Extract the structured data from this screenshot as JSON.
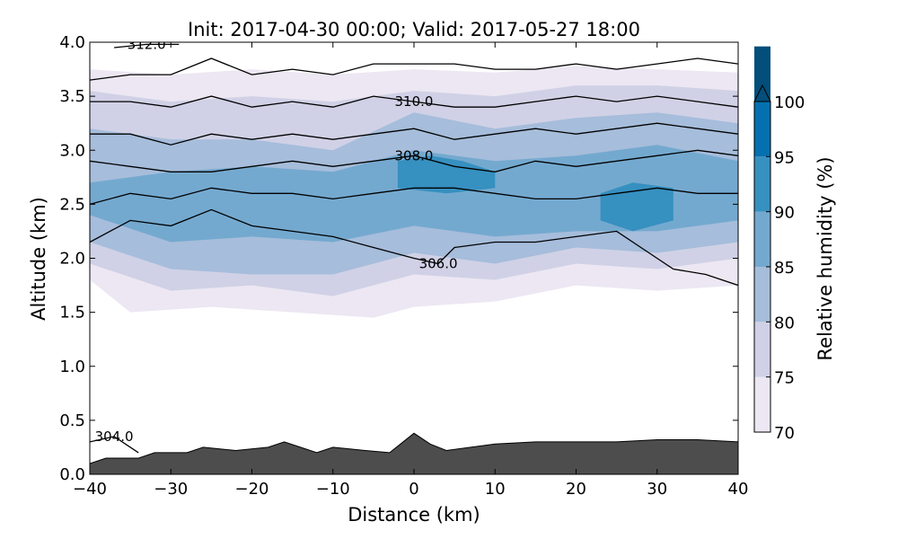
{
  "chart_data": {
    "type": "filled-contour",
    "title": "Init: 2017-04-30 00:00; Valid: 2017-05-27 18:00",
    "xlabel": "Distance (km)",
    "ylabel": "Altitude (km)",
    "xlim": [
      -40,
      40
    ],
    "ylim": [
      0,
      4
    ],
    "x_ticks": [
      -40,
      -30,
      -20,
      -10,
      0,
      10,
      20,
      30,
      40
    ],
    "x_tick_labels": [
      "−40",
      "−30",
      "−20",
      "−10",
      "0",
      "10",
      "20",
      "30",
      "40"
    ],
    "y_ticks": [
      0,
      0.5,
      1,
      1.5,
      2,
      2.5,
      3,
      3.5,
      4
    ],
    "y_tick_labels": [
      "0.0",
      "0.5",
      "1.0",
      "1.5",
      "2.0",
      "2.5",
      "3.0",
      "3.5",
      "4.0"
    ],
    "colorbar": {
      "label": "Relative humidity (%)",
      "levels": [
        70,
        75,
        80,
        85,
        90,
        95,
        100
      ],
      "tick_labels": [
        "70",
        "75",
        "80",
        "85",
        "90",
        "95",
        "100"
      ],
      "colors": [
        "#ece7f2",
        "#d0d1e6",
        "#a6bddb",
        "#74a9cf",
        "#3690c0",
        "#0570b0",
        "#034e7b"
      ],
      "extend": "max"
    },
    "rh_bands": [
      {
        "min": 70,
        "bottom": [
          [
            -40,
            1.8
          ],
          [
            -35,
            1.5
          ],
          [
            -25,
            1.55
          ],
          [
            -15,
            1.5
          ],
          [
            -5,
            1.45
          ],
          [
            0,
            1.55
          ],
          [
            10,
            1.6
          ],
          [
            20,
            1.75
          ],
          [
            30,
            1.7
          ],
          [
            40,
            1.75
          ]
        ],
        "top": [
          [
            -40,
            3.75
          ],
          [
            -30,
            3.7
          ],
          [
            -20,
            3.75
          ],
          [
            -10,
            3.7
          ],
          [
            0,
            3.75
          ],
          [
            10,
            3.72
          ],
          [
            20,
            3.78
          ],
          [
            30,
            3.75
          ],
          [
            40,
            3.72
          ]
        ]
      },
      {
        "min": 75,
        "bottom": [
          [
            -40,
            1.95
          ],
          [
            -30,
            1.7
          ],
          [
            -20,
            1.75
          ],
          [
            -10,
            1.65
          ],
          [
            0,
            1.85
          ],
          [
            10,
            1.8
          ],
          [
            20,
            1.95
          ],
          [
            30,
            1.9
          ],
          [
            40,
            2.0
          ]
        ],
        "top": [
          [
            -40,
            3.55
          ],
          [
            -30,
            3.45
          ],
          [
            -20,
            3.5
          ],
          [
            -10,
            3.45
          ],
          [
            0,
            3.55
          ],
          [
            10,
            3.5
          ],
          [
            20,
            3.6
          ],
          [
            30,
            3.6
          ],
          [
            40,
            3.55
          ]
        ]
      },
      {
        "min": 80,
        "bottom": [
          [
            -40,
            2.15
          ],
          [
            -30,
            1.9
          ],
          [
            -20,
            1.85
          ],
          [
            -10,
            1.85
          ],
          [
            0,
            2.05
          ],
          [
            10,
            1.95
          ],
          [
            20,
            2.1
          ],
          [
            30,
            2.05
          ],
          [
            40,
            2.15
          ]
        ],
        "top": [
          [
            -40,
            3.2
          ],
          [
            -30,
            3.1
          ],
          [
            -20,
            3.1
          ],
          [
            -10,
            3.0
          ],
          [
            0,
            3.35
          ],
          [
            10,
            3.2
          ],
          [
            20,
            3.3
          ],
          [
            30,
            3.35
          ],
          [
            40,
            3.25
          ]
        ]
      },
      {
        "min": 85,
        "bottom": [
          [
            -40,
            2.4
          ],
          [
            -30,
            2.15
          ],
          [
            -20,
            2.2
          ],
          [
            -10,
            2.15
          ],
          [
            0,
            2.3
          ],
          [
            10,
            2.2
          ],
          [
            20,
            2.25
          ],
          [
            30,
            2.25
          ],
          [
            40,
            2.35
          ]
        ],
        "top": [
          [
            -40,
            2.7
          ],
          [
            -30,
            2.8
          ],
          [
            -20,
            2.85
          ],
          [
            -10,
            2.8
          ],
          [
            0,
            3.0
          ],
          [
            10,
            2.9
          ],
          [
            20,
            2.95
          ],
          [
            30,
            3.05
          ],
          [
            40,
            2.9
          ]
        ]
      },
      {
        "min": 90,
        "bottom": [
          [
            -2,
            2.65
          ],
          [
            4,
            2.6
          ],
          [
            10,
            2.65
          ]
        ],
        "top": [
          [
            -2,
            2.9
          ],
          [
            2,
            2.95
          ],
          [
            6,
            2.9
          ],
          [
            10,
            2.8
          ]
        ]
      },
      {
        "min": 90,
        "bottom": [
          [
            23,
            2.35
          ],
          [
            27,
            2.25
          ],
          [
            32,
            2.35
          ]
        ],
        "top": [
          [
            23,
            2.6
          ],
          [
            27,
            2.7
          ],
          [
            32,
            2.65
          ]
        ]
      }
    ],
    "isentropes": [
      {
        "value": 304.0,
        "label": "304.0",
        "points": [
          [
            -40,
            0.3
          ],
          [
            -37,
            0.35
          ],
          [
            -34,
            0.2
          ]
        ]
      },
      {
        "value": 306.0,
        "label": "306.0",
        "points": [
          [
            -40,
            2.15
          ],
          [
            -35,
            2.35
          ],
          [
            -30,
            2.3
          ],
          [
            -25,
            2.45
          ],
          [
            -20,
            2.3
          ],
          [
            -15,
            2.25
          ],
          [
            -10,
            2.2
          ],
          [
            -5,
            2.1
          ],
          [
            0,
            2.0
          ],
          [
            3,
            1.95
          ],
          [
            5,
            2.1
          ],
          [
            10,
            2.15
          ],
          [
            15,
            2.15
          ],
          [
            20,
            2.2
          ],
          [
            25,
            2.25
          ],
          [
            28,
            2.1
          ],
          [
            32,
            1.9
          ],
          [
            36,
            1.85
          ],
          [
            40,
            1.75
          ]
        ]
      },
      {
        "value": 307.0,
        "label": "",
        "points": [
          [
            -40,
            2.5
          ],
          [
            -35,
            2.6
          ],
          [
            -30,
            2.55
          ],
          [
            -25,
            2.65
          ],
          [
            -20,
            2.6
          ],
          [
            -15,
            2.6
          ],
          [
            -10,
            2.55
          ],
          [
            -5,
            2.6
          ],
          [
            0,
            2.65
          ],
          [
            5,
            2.65
          ],
          [
            10,
            2.6
          ],
          [
            15,
            2.55
          ],
          [
            20,
            2.55
          ],
          [
            25,
            2.6
          ],
          [
            30,
            2.65
          ],
          [
            35,
            2.6
          ],
          [
            40,
            2.6
          ]
        ]
      },
      {
        "value": 308.0,
        "label": "308.0",
        "points": [
          [
            -40,
            2.9
          ],
          [
            -35,
            2.85
          ],
          [
            -30,
            2.8
          ],
          [
            -25,
            2.8
          ],
          [
            -20,
            2.85
          ],
          [
            -15,
            2.9
          ],
          [
            -10,
            2.85
          ],
          [
            -5,
            2.9
          ],
          [
            0,
            2.95
          ],
          [
            5,
            2.85
          ],
          [
            10,
            2.8
          ],
          [
            15,
            2.9
          ],
          [
            20,
            2.85
          ],
          [
            25,
            2.9
          ],
          [
            30,
            2.95
          ],
          [
            35,
            3.0
          ],
          [
            40,
            2.95
          ]
        ]
      },
      {
        "value": 309.0,
        "label": "",
        "points": [
          [
            -40,
            3.15
          ],
          [
            -35,
            3.15
          ],
          [
            -30,
            3.05
          ],
          [
            -25,
            3.15
          ],
          [
            -20,
            3.1
          ],
          [
            -15,
            3.15
          ],
          [
            -10,
            3.1
          ],
          [
            -5,
            3.15
          ],
          [
            0,
            3.2
          ],
          [
            5,
            3.1
          ],
          [
            10,
            3.15
          ],
          [
            15,
            3.2
          ],
          [
            20,
            3.15
          ],
          [
            25,
            3.2
          ],
          [
            30,
            3.25
          ],
          [
            35,
            3.2
          ],
          [
            40,
            3.15
          ]
        ]
      },
      {
        "value": 310.0,
        "label": "310.0",
        "points": [
          [
            -40,
            3.45
          ],
          [
            -35,
            3.45
          ],
          [
            -30,
            3.4
          ],
          [
            -25,
            3.5
          ],
          [
            -20,
            3.4
          ],
          [
            -15,
            3.45
          ],
          [
            -10,
            3.4
          ],
          [
            -5,
            3.5
          ],
          [
            0,
            3.45
          ],
          [
            5,
            3.4
          ],
          [
            10,
            3.4
          ],
          [
            15,
            3.45
          ],
          [
            20,
            3.5
          ],
          [
            25,
            3.45
          ],
          [
            30,
            3.5
          ],
          [
            35,
            3.45
          ],
          [
            40,
            3.4
          ]
        ]
      },
      {
        "value": 311.0,
        "label": "",
        "points": [
          [
            -40,
            3.65
          ],
          [
            -35,
            3.7
          ],
          [
            -30,
            3.7
          ],
          [
            -25,
            3.85
          ],
          [
            -20,
            3.7
          ],
          [
            -15,
            3.75
          ],
          [
            -10,
            3.7
          ],
          [
            -5,
            3.8
          ],
          [
            0,
            3.8
          ],
          [
            5,
            3.8
          ],
          [
            10,
            3.75
          ],
          [
            15,
            3.75
          ],
          [
            20,
            3.8
          ],
          [
            25,
            3.75
          ],
          [
            30,
            3.8
          ],
          [
            35,
            3.85
          ],
          [
            40,
            3.8
          ]
        ]
      },
      {
        "value": 312.0,
        "label": "312.0",
        "points": [
          [
            -37,
            3.95
          ],
          [
            -33,
            3.98
          ],
          [
            -29,
            3.98
          ]
        ]
      }
    ],
    "terrain": [
      [
        -40,
        0.1
      ],
      [
        -38,
        0.15
      ],
      [
        -36,
        0.15
      ],
      [
        -34,
        0.15
      ],
      [
        -32,
        0.2
      ],
      [
        -28,
        0.2
      ],
      [
        -26,
        0.25
      ],
      [
        -22,
        0.22
      ],
      [
        -18,
        0.25
      ],
      [
        -16,
        0.3
      ],
      [
        -14,
        0.25
      ],
      [
        -12,
        0.2
      ],
      [
        -10,
        0.25
      ],
      [
        -6,
        0.22
      ],
      [
        -3,
        0.2
      ],
      [
        0,
        0.38
      ],
      [
        2,
        0.28
      ],
      [
        4,
        0.22
      ],
      [
        10,
        0.28
      ],
      [
        15,
        0.3
      ],
      [
        20,
        0.3
      ],
      [
        25,
        0.3
      ],
      [
        30,
        0.32
      ],
      [
        35,
        0.32
      ],
      [
        40,
        0.3
      ]
    ]
  }
}
